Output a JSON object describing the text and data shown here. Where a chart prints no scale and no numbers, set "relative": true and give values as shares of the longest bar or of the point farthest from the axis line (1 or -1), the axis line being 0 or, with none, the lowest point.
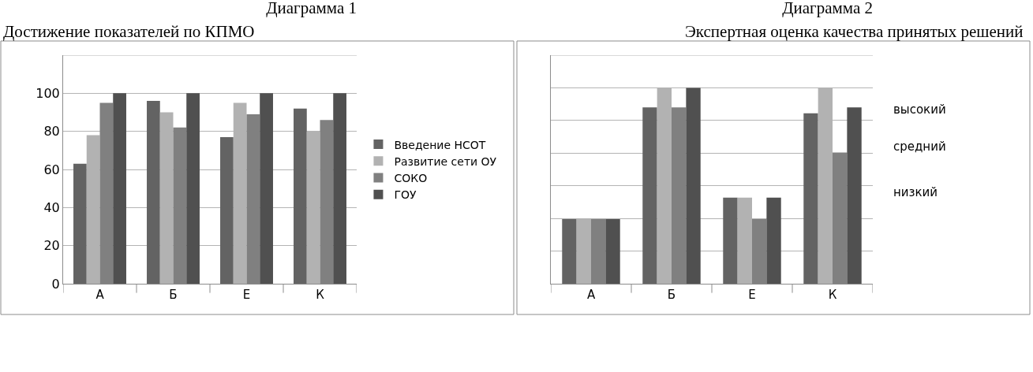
{
  "chart_data": [
    {
      "type": "bar",
      "title": "Диаграмма 1",
      "subtitle": "Достижение показателей по КПМО",
      "categories": [
        "А",
        "Б",
        "Е",
        "К"
      ],
      "series": [
        {
          "name": "Введение НСОТ",
          "color": "#636363",
          "values": [
            63,
            96,
            77,
            92
          ]
        },
        {
          "name": "Развитие сети ОУ",
          "color": "#b2b2b2",
          "values": [
            78,
            90,
            95,
            80
          ]
        },
        {
          "name": "СОКО",
          "color": "#808080",
          "values": [
            95,
            82,
            89,
            86
          ]
        },
        {
          "name": "ГОУ",
          "color": "#505050",
          "values": [
            100,
            100,
            100,
            100
          ]
        }
      ],
      "ylim": [
        0,
        120
      ],
      "yticks": [
        0,
        20,
        40,
        60,
        80,
        100,
        {
          "value": 120,
          "label": null
        }
      ],
      "grid": "y",
      "legend": "right"
    },
    {
      "type": "bar",
      "title": "Диаграмма 2",
      "subtitle": "Экспертная оценка качества принятых решений",
      "categories": [
        "А",
        "Б",
        "Е",
        "К"
      ],
      "relative": true,
      "series": [
        {
          "color": "#636363",
          "values": [
            0.33,
            0.9,
            0.44,
            0.87
          ]
        },
        {
          "color": "#b2b2b2",
          "values": [
            0.33,
            1,
            0.44,
            1
          ]
        },
        {
          "color": "#808080",
          "values": [
            0.33,
            0.9,
            0.33,
            0.67
          ]
        },
        {
          "color": "#505050",
          "values": [
            0.33,
            1,
            0.44,
            0.9
          ]
        }
      ],
      "annotations": [
        "высокий",
        "средний",
        "низкий"
      ],
      "grid": "y",
      "legend": false
    }
  ]
}
